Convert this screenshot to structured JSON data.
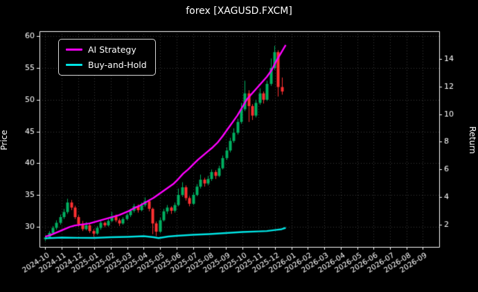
{
  "chart_data": {
    "type": "candlestick+line",
    "title": "forex [XAGUSD.FXCM]",
    "x_tick_labels": [
      "2024-10",
      "2024-11",
      "2024-12",
      "2025-01",
      "2025-02",
      "2025-03",
      "2025-04",
      "2025-05",
      "2025-06",
      "2025-07",
      "2025-08",
      "2025-09",
      "2025-10",
      "2025-11",
      "2025-12",
      "2026-01",
      "2026-02",
      "2026-03",
      "2026-04",
      "2026-05",
      "2026-06",
      "2026-07",
      "2026-08",
      "2026-09"
    ],
    "xlim": [
      -0.35,
      24.0
    ],
    "x_unit": "months since 2024-10",
    "grid": "dotted",
    "legend_position": "upper-left",
    "left_axis": {
      "label": "Price",
      "ticks": [
        30,
        35,
        40,
        45,
        50,
        55,
        60
      ],
      "lim": [
        26.8,
        60.8
      ]
    },
    "right_axis": {
      "label": "Return",
      "ticks": [
        2,
        4,
        6,
        8,
        10,
        12,
        14
      ],
      "lim": [
        0.4,
        16.0
      ]
    },
    "candles": {
      "name": "XAGUSD price",
      "up_color": "#00b061",
      "down_color": "#fe3032",
      "ohlc": [
        [
          0.0,
          28.0,
          28.6,
          27.7,
          28.3
        ],
        [
          0.225,
          28.3,
          29.3,
          28.1,
          29.0
        ],
        [
          0.45,
          29.0,
          30.1,
          28.8,
          29.8
        ],
        [
          0.68,
          29.8,
          31.0,
          29.5,
          30.6
        ],
        [
          0.9,
          30.6,
          31.9,
          30.3,
          31.5
        ],
        [
          1.13,
          31.5,
          32.8,
          31.2,
          32.3
        ],
        [
          1.35,
          32.3,
          34.4,
          32.0,
          33.8
        ],
        [
          1.58,
          33.8,
          34.2,
          32.6,
          33.0
        ],
        [
          1.8,
          33.0,
          33.3,
          31.2,
          31.5
        ],
        [
          2.03,
          31.5,
          31.8,
          30.0,
          30.4
        ],
        [
          2.25,
          30.4,
          30.9,
          29.3,
          29.6
        ],
        [
          2.48,
          29.6,
          30.7,
          29.4,
          30.2
        ],
        [
          2.7,
          30.2,
          30.4,
          29.0,
          29.3
        ],
        [
          2.93,
          29.3,
          29.6,
          28.4,
          28.9
        ],
        [
          3.15,
          28.9,
          30.1,
          28.7,
          29.8
        ],
        [
          3.38,
          29.8,
          30.9,
          29.5,
          30.6
        ],
        [
          3.6,
          30.6,
          30.8,
          29.9,
          30.2
        ],
        [
          3.83,
          30.2,
          31.2,
          30.0,
          30.9
        ],
        [
          4.05,
          30.9,
          32.3,
          30.7,
          31.6
        ],
        [
          4.28,
          31.6,
          31.9,
          30.7,
          31.0
        ],
        [
          4.5,
          31.0,
          31.3,
          30.1,
          30.5
        ],
        [
          4.73,
          30.5,
          31.5,
          30.3,
          31.2
        ],
        [
          4.95,
          31.2,
          32.1,
          31.0,
          31.8
        ],
        [
          5.18,
          31.8,
          32.8,
          31.5,
          32.5
        ],
        [
          5.4,
          32.5,
          33.6,
          32.2,
          33.2
        ],
        [
          5.63,
          33.2,
          33.5,
          32.2,
          32.6
        ],
        [
          5.85,
          32.6,
          33.8,
          32.4,
          33.4
        ],
        [
          6.08,
          33.4,
          34.6,
          33.1,
          34.0
        ],
        [
          6.3,
          34.0,
          34.3,
          32.4,
          32.8
        ],
        [
          6.53,
          32.8,
          33.0,
          28.8,
          30.5
        ],
        [
          6.75,
          30.5,
          30.8,
          28.5,
          29.2
        ],
        [
          6.98,
          29.2,
          31.4,
          29.0,
          31.0
        ],
        [
          7.2,
          31.0,
          32.8,
          30.8,
          32.4
        ],
        [
          7.43,
          32.4,
          33.4,
          32.0,
          33.0
        ],
        [
          7.65,
          33.0,
          33.2,
          32.0,
          32.5
        ],
        [
          7.88,
          32.5,
          33.8,
          32.2,
          33.4
        ],
        [
          8.1,
          33.4,
          36.0,
          33.2,
          35.0
        ],
        [
          8.33,
          35.0,
          37.0,
          34.7,
          36.2
        ],
        [
          8.55,
          36.2,
          36.5,
          34.1,
          34.5
        ],
        [
          8.78,
          34.5,
          34.8,
          33.2,
          33.6
        ],
        [
          9.0,
          33.6,
          35.4,
          33.4,
          35.0
        ],
        [
          9.23,
          35.0,
          36.7,
          34.8,
          36.3
        ],
        [
          9.45,
          36.3,
          38.2,
          36.0,
          37.4
        ],
        [
          9.68,
          37.4,
          37.7,
          36.3,
          36.8
        ],
        [
          9.9,
          36.8,
          38.0,
          36.5,
          37.5
        ],
        [
          10.13,
          37.5,
          39.0,
          37.2,
          38.6
        ],
        [
          10.35,
          38.6,
          38.9,
          37.5,
          38.0
        ],
        [
          10.58,
          38.0,
          39.6,
          37.8,
          39.2
        ],
        [
          10.8,
          39.2,
          41.2,
          39.0,
          40.8
        ],
        [
          11.03,
          40.8,
          42.5,
          40.5,
          42.0
        ],
        [
          11.25,
          42.0,
          44.0,
          41.7,
          43.5
        ],
        [
          11.48,
          43.5,
          45.5,
          43.2,
          44.8
        ],
        [
          11.7,
          44.8,
          47.0,
          44.5,
          46.5
        ],
        [
          11.93,
          46.5,
          49.5,
          46.2,
          48.5
        ],
        [
          12.15,
          48.5,
          53.0,
          48.2,
          51.0
        ],
        [
          12.38,
          51.0,
          51.5,
          46.5,
          49.0
        ],
        [
          12.6,
          49.0,
          49.3,
          46.8,
          47.5
        ],
        [
          12.83,
          47.5,
          50.0,
          47.2,
          49.5
        ],
        [
          13.05,
          49.5,
          51.8,
          49.2,
          51.0
        ],
        [
          13.28,
          51.0,
          51.3,
          49.4,
          50.0
        ],
        [
          13.5,
          50.0,
          53.0,
          49.8,
          52.5
        ],
        [
          13.73,
          52.5,
          56.5,
          52.2,
          55.0
        ],
        [
          13.95,
          55.0,
          58.5,
          54.7,
          57.5
        ],
        [
          14.18,
          57.5,
          57.8,
          50.5,
          52.0
        ],
        [
          14.4,
          52.0,
          53.5,
          50.8,
          51.3
        ]
      ]
    },
    "series": [
      {
        "name": "AI Strategy",
        "axis": "right",
        "color": "#ff00ff",
        "x": [
          0,
          0.3,
          0.6,
          0.9,
          1.2,
          1.5,
          1.8,
          2.1,
          2.4,
          2.7,
          3.0,
          3.3,
          3.6,
          3.9,
          4.2,
          4.5,
          4.8,
          5.1,
          5.4,
          5.7,
          6.0,
          6.3,
          6.6,
          6.9,
          7.2,
          7.5,
          7.8,
          8.1,
          8.4,
          8.7,
          9.0,
          9.3,
          9.6,
          9.9,
          10.2,
          10.5,
          10.8,
          11.1,
          11.4,
          11.7,
          12.0,
          12.3,
          12.6,
          12.9,
          13.2,
          13.5,
          13.8,
          14.1,
          14.4,
          14.65
        ],
        "values": [
          1.15,
          1.25,
          1.4,
          1.55,
          1.7,
          1.85,
          1.95,
          2.0,
          2.05,
          2.1,
          2.2,
          2.3,
          2.4,
          2.5,
          2.6,
          2.7,
          2.85,
          3.0,
          3.2,
          3.35,
          3.55,
          3.75,
          3.95,
          4.2,
          4.45,
          4.7,
          4.95,
          5.3,
          5.7,
          6.0,
          6.35,
          6.7,
          7.0,
          7.3,
          7.6,
          7.95,
          8.4,
          8.9,
          9.4,
          9.9,
          10.5,
          11.1,
          11.5,
          11.9,
          12.3,
          12.7,
          13.2,
          13.9,
          14.5,
          15.0
        ]
      },
      {
        "name": "Buy-and-Hold",
        "axis": "right",
        "color": "#00e5e5",
        "x": [
          0,
          1,
          2,
          3,
          4,
          5,
          6,
          6.6,
          6.9,
          7.5,
          8,
          9,
          10,
          11,
          12,
          13,
          13.5,
          14,
          14.4,
          14.65
        ],
        "values": [
          1.02,
          1.08,
          1.06,
          1.05,
          1.1,
          1.13,
          1.18,
          1.1,
          1.04,
          1.15,
          1.2,
          1.28,
          1.33,
          1.4,
          1.48,
          1.52,
          1.55,
          1.62,
          1.68,
          1.78
        ]
      }
    ]
  }
}
